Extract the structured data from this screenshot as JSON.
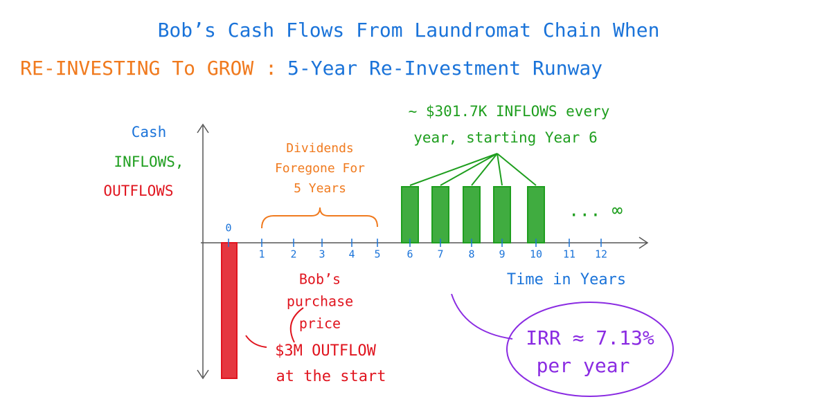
{
  "title": {
    "line1": "Bob’s Cash Flows From Laundromat Chain When",
    "line2_orange": "RE-INVESTING To GROW :",
    "line2_blue": "5-Year Re-Investment Runway"
  },
  "y_axis": {
    "line1": "Cash",
    "line2": "INFLOWS,",
    "line3": "OUTFLOWS"
  },
  "x_axis": {
    "ticks": [
      "0",
      "1",
      "2",
      "3",
      "4",
      "5",
      "6",
      "7",
      "8",
      "9",
      "10",
      "11",
      "12"
    ],
    "label": "Time in Years"
  },
  "annotations": {
    "dividends": [
      "Dividends",
      "Foregone For",
      "5 Years"
    ],
    "inflows": [
      "~ $301.7K INFLOWS every",
      "year, starting Year 6"
    ],
    "infinity": "... ∞",
    "purchase": [
      "Bob’s",
      "purchase",
      "price"
    ],
    "outflow": [
      "$3M OUTFLOW",
      "at the start"
    ],
    "irr": [
      "IRR ≈ 7.13%",
      "per year"
    ]
  }
}
